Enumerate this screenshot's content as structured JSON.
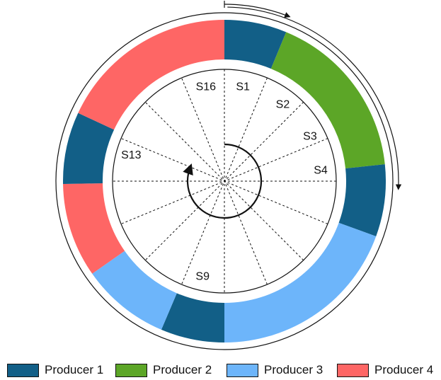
{
  "colors": {
    "producer_1": "#125f87",
    "producer_2": "#5ca627",
    "producer_3": "#6db5fa",
    "producer_4": "#fe6665"
  },
  "ring_segments": [
    {
      "producer": "producer_1",
      "start_deg": 0,
      "end_deg": 22.5
    },
    {
      "producer": "producer_2",
      "start_deg": 22.5,
      "end_deg": 84
    },
    {
      "producer": "producer_1",
      "start_deg": 84,
      "end_deg": 110
    },
    {
      "producer": "producer_3",
      "start_deg": 110,
      "end_deg": 180
    },
    {
      "producer": "producer_1",
      "start_deg": 180,
      "end_deg": 203
    },
    {
      "producer": "producer_3",
      "start_deg": 203,
      "end_deg": 235
    },
    {
      "producer": "producer_4",
      "start_deg": 235,
      "end_deg": 269
    },
    {
      "producer": "producer_1",
      "start_deg": 269,
      "end_deg": 295
    },
    {
      "producer": "producer_4",
      "start_deg": 295,
      "end_deg": 360
    }
  ],
  "slot_labels": [
    {
      "text": "S1",
      "angle_deg": 11
    },
    {
      "text": "S2",
      "angle_deg": 37
    },
    {
      "text": "S3",
      "angle_deg": 62
    },
    {
      "text": "S4",
      "angle_deg": 83
    },
    {
      "text": "S9",
      "angle_deg": 193
    },
    {
      "text": "S13",
      "angle_deg": 286
    },
    {
      "text": "S16",
      "angle_deg": 349
    }
  ],
  "legend": [
    {
      "label": "Producer 1",
      "color": "#125f87"
    },
    {
      "label": "Producer 2",
      "color": "#5ca627"
    },
    {
      "label": "Producer 3",
      "color": "#6db5fa"
    },
    {
      "label": "Producer 4",
      "color": "#fe6665"
    }
  ]
}
